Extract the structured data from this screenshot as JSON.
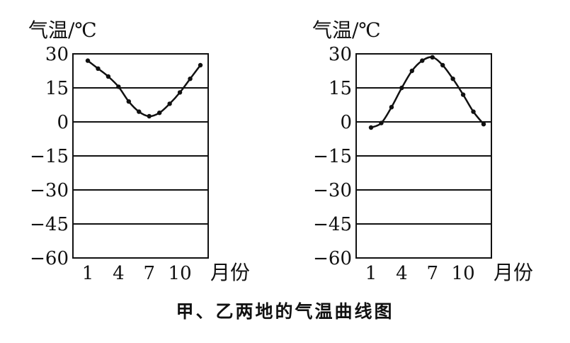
{
  "caption": "甲、乙两地的气温曲线图",
  "chart_data": [
    {
      "type": "line",
      "ylabel": "气温/℃",
      "xlabel": "月份",
      "ylim": [
        -60,
        30
      ],
      "yticks": [
        "30",
        "15",
        "0",
        "-15",
        "-30",
        "-45",
        "-60"
      ],
      "ytick_values": [
        30,
        15,
        0,
        -15,
        -30,
        -45,
        -60
      ],
      "xticks": [
        "1",
        "4",
        "7",
        "10"
      ],
      "xtick_values": [
        1,
        4,
        7,
        10
      ],
      "grid": true,
      "series": [
        {
          "x": [
            1,
            2,
            3,
            4,
            5,
            6,
            7,
            8,
            9,
            10,
            11,
            12
          ],
          "values": [
            27,
            23.5,
            20,
            15.5,
            9,
            4.5,
            2.5,
            4,
            8,
            13,
            19,
            25
          ]
        }
      ]
    },
    {
      "type": "line",
      "ylabel": "气温/℃",
      "xlabel": "月份",
      "ylim": [
        -60,
        30
      ],
      "yticks": [
        "30",
        "15",
        "0",
        "-15",
        "-30",
        "-45",
        "-60"
      ],
      "ytick_values": [
        30,
        15,
        0,
        -15,
        -30,
        -45,
        -60
      ],
      "xticks": [
        "1",
        "4",
        "7",
        "10"
      ],
      "xtick_values": [
        1,
        4,
        7,
        10
      ],
      "grid": true,
      "series": [
        {
          "x": [
            1,
            2,
            3,
            4,
            5,
            6,
            7,
            8,
            9,
            10,
            11,
            12
          ],
          "values": [
            -2.5,
            -0.5,
            6.5,
            15,
            22.5,
            27,
            28.5,
            25,
            19,
            12,
            4.5,
            -1
          ]
        }
      ]
    }
  ]
}
